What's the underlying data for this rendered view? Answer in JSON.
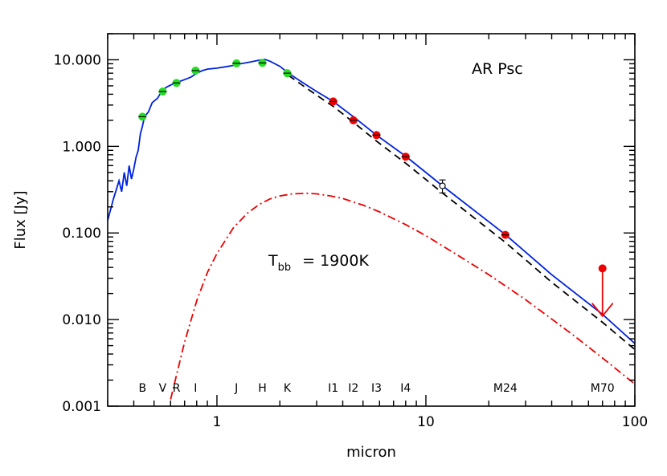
{
  "chart_data": {
    "type": "line",
    "title": "",
    "annotation": "AR Psc",
    "xlabel": "micron",
    "ylabel": "Flux [Jy]",
    "xscale": "log",
    "yscale": "log",
    "xlim": [
      0.3,
      100
    ],
    "ylim": [
      0.001,
      20
    ],
    "grid": false,
    "x_ticks": [
      {
        "value": 1,
        "label": "1"
      },
      {
        "value": 10,
        "label": "10"
      },
      {
        "value": 100,
        "label": "100"
      }
    ],
    "y_ticks": [
      {
        "value": 0.001,
        "label": "0.001"
      },
      {
        "value": 0.01,
        "label": "0.010"
      },
      {
        "value": 0.1,
        "label": "0.100"
      },
      {
        "value": 1,
        "label": "1.000"
      },
      {
        "value": 10,
        "label": "10.000"
      }
    ],
    "temperature_label": {
      "main": "T",
      "sub": "bb",
      "value": "= 1900K"
    },
    "band_labels": [
      {
        "x": 0.44,
        "label": "B"
      },
      {
        "x": 0.55,
        "label": "V"
      },
      {
        "x": 0.64,
        "label": "R"
      },
      {
        "x": 0.79,
        "label": "I"
      },
      {
        "x": 1.24,
        "label": "J"
      },
      {
        "x": 1.65,
        "label": "H"
      },
      {
        "x": 2.17,
        "label": "K"
      },
      {
        "x": 3.6,
        "label": "I1"
      },
      {
        "x": 4.5,
        "label": "I2"
      },
      {
        "x": 5.8,
        "label": "I3"
      },
      {
        "x": 8.0,
        "label": "I4"
      },
      {
        "x": 24,
        "label": "M24"
      },
      {
        "x": 70,
        "label": "M70"
      }
    ],
    "series": [
      {
        "type": "line",
        "style": "solid",
        "color": "#0022dd",
        "x": [
          0.3,
          0.32,
          0.34,
          0.35,
          0.36,
          0.37,
          0.38,
          0.39,
          0.4,
          0.41,
          0.42,
          0.43,
          0.44,
          0.45,
          0.47,
          0.49,
          0.52,
          0.55,
          0.58,
          0.62,
          0.66,
          0.7,
          0.75,
          0.8,
          0.85,
          0.9,
          1.0,
          1.1,
          1.2,
          1.3,
          1.4,
          1.5,
          1.6,
          1.7,
          1.8,
          2.0,
          2.2,
          2.5,
          3.0,
          3.6,
          4.5,
          5.8,
          8.0,
          12,
          24,
          40,
          70,
          100
        ],
        "y": [
          0.14,
          0.25,
          0.4,
          0.3,
          0.5,
          0.35,
          0.6,
          0.42,
          0.55,
          0.75,
          0.9,
          1.4,
          1.7,
          2.2,
          2.5,
          3.2,
          3.6,
          4.5,
          4.9,
          5.3,
          5.6,
          5.9,
          6.3,
          7.0,
          7.5,
          7.8,
          8.0,
          8.3,
          8.6,
          9.0,
          9.3,
          9.6,
          9.9,
          10.1,
          9.6,
          8.4,
          7.0,
          5.7,
          4.3,
          3.3,
          2.2,
          1.35,
          0.77,
          0.35,
          0.096,
          0.033,
          0.0115,
          0.0053
        ]
      },
      {
        "type": "line",
        "style": "dashed",
        "color": "#000000",
        "x": [
          2.2,
          2.5,
          3.0,
          3.6,
          4.5,
          5.8,
          8.0,
          12,
          24,
          40,
          70,
          100
        ],
        "y": [
          6.6,
          5.3,
          3.9,
          2.9,
          1.9,
          1.15,
          0.64,
          0.29,
          0.078,
          0.027,
          0.0093,
          0.0045
        ]
      },
      {
        "type": "line",
        "style": "dashdot",
        "color": "#ee0000",
        "x": [
          0.6,
          0.7,
          0.8,
          0.9,
          1.0,
          1.2,
          1.4,
          1.6,
          1.8,
          2.0,
          2.3,
          2.7,
          3.0,
          3.5,
          4.0,
          5.0,
          6.0,
          8.0,
          10,
          15,
          20,
          30,
          50,
          70,
          100
        ],
        "y": [
          0.0012,
          0.0055,
          0.0165,
          0.035,
          0.058,
          0.115,
          0.17,
          0.215,
          0.248,
          0.268,
          0.283,
          0.287,
          0.283,
          0.268,
          0.25,
          0.21,
          0.175,
          0.125,
          0.093,
          0.051,
          0.033,
          0.017,
          0.0068,
          0.0036,
          0.0018
        ]
      },
      {
        "type": "scatter",
        "color": "#22dd22",
        "x": [
          0.44,
          0.55,
          0.64,
          0.79,
          1.24,
          1.65,
          2.17
        ],
        "y": [
          2.2,
          4.3,
          5.4,
          7.5,
          9.1,
          9.2,
          7.0
        ]
      },
      {
        "type": "scatter",
        "color": "#ee0000",
        "x": [
          3.6,
          4.5,
          5.8,
          8.0,
          24
        ],
        "y": [
          3.3,
          2.0,
          1.35,
          0.76,
          0.095
        ]
      },
      {
        "type": "scatter-open",
        "color": "#000000",
        "x": [
          12
        ],
        "y": [
          0.35
        ],
        "yerr": [
          0.06
        ]
      },
      {
        "type": "upper-limit",
        "color": "#ee0000",
        "x": [
          70
        ],
        "y": [
          0.039
        ],
        "arrow_to": 0.011
      }
    ]
  }
}
